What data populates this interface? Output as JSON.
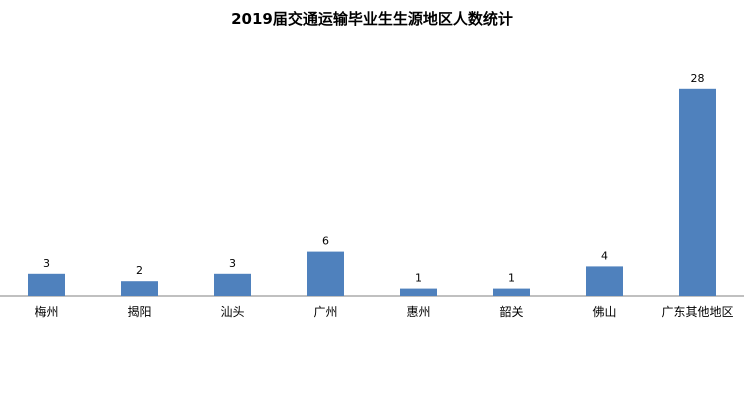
{
  "chart_data": {
    "type": "bar",
    "title": "2019届交通运输毕业生生源地区人数统计",
    "categories": [
      "梅州",
      "揭阳",
      "汕头",
      "广州",
      "惠州",
      "韶关",
      "佛山",
      "广东其他地区"
    ],
    "values": [
      3,
      2,
      3,
      6,
      1,
      1,
      4,
      28
    ],
    "ylim": [
      0,
      30
    ],
    "grid": false,
    "legend": "none",
    "bar_color": "#4F81BD",
    "axis_color": "#808080"
  }
}
